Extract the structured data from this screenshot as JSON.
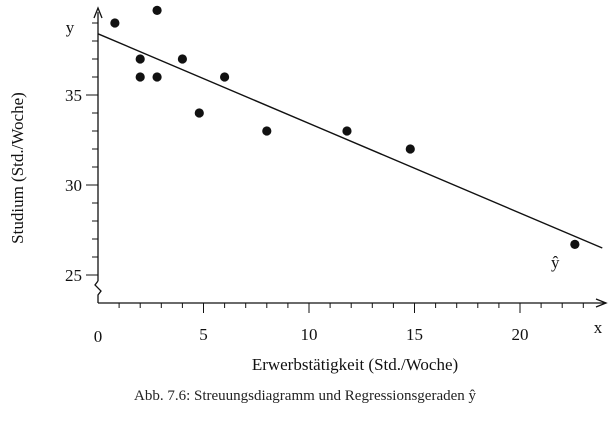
{
  "chart_data": {
    "type": "scatter",
    "xlabel": "Erwerbstätigkeit (Std./Woche)",
    "ylabel": "Studium (Std./Woche)",
    "x_axis_symbol": "x",
    "y_axis_symbol": "y",
    "x_origin_label": "0",
    "x_ticks": [
      5,
      10,
      15,
      20
    ],
    "y_ticks": [
      25,
      30,
      35
    ],
    "xlim": [
      0,
      24
    ],
    "ylim": [
      24,
      40
    ],
    "axis_break": true,
    "points": [
      {
        "x": 0.8,
        "y": 39.0
      },
      {
        "x": 2.0,
        "y": 37.0
      },
      {
        "x": 2.0,
        "y": 36.0
      },
      {
        "x": 2.8,
        "y": 39.7
      },
      {
        "x": 2.8,
        "y": 36.0
      },
      {
        "x": 4.0,
        "y": 37.0
      },
      {
        "x": 4.8,
        "y": 34.0
      },
      {
        "x": 6.0,
        "y": 36.0
      },
      {
        "x": 8.0,
        "y": 33.0
      },
      {
        "x": 11.8,
        "y": 33.0
      },
      {
        "x": 14.8,
        "y": 32.0
      },
      {
        "x": 22.6,
        "y": 26.7
      }
    ],
    "regression_line": {
      "label": "ŷ",
      "x": [
        0,
        23.9
      ],
      "y": [
        38.4,
        26.5
      ]
    }
  },
  "caption": "Abb. 7.6:  Streuungsdiagramm und Regressionsgeraden ŷ"
}
